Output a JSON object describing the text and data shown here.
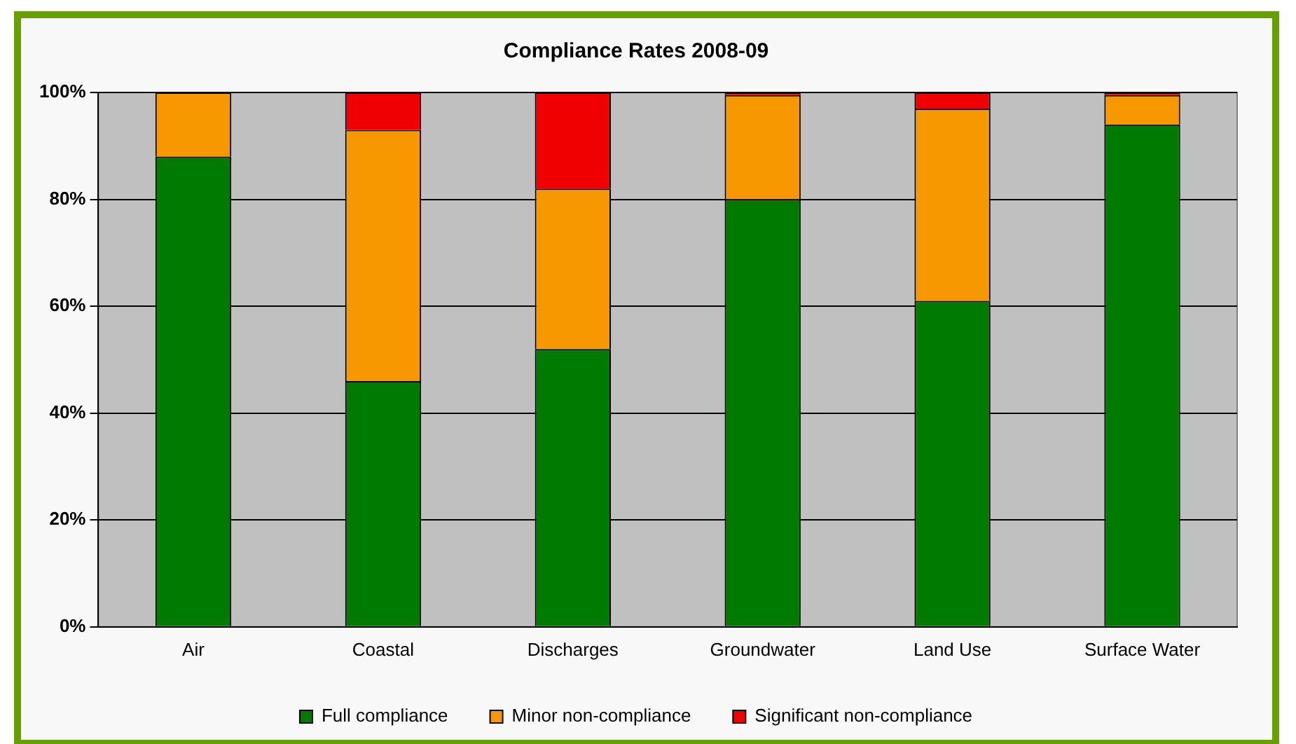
{
  "chart_data": {
    "type": "bar",
    "title": "Compliance Rates 2008-09",
    "categories": [
      "Air",
      "Coastal",
      "Discharges",
      "Groundwater",
      "Land Use",
      "Surface Water"
    ],
    "stacked": true,
    "series": [
      {
        "name": "Full compliance",
        "color": "#007a00",
        "values": [
          88,
          46,
          52,
          80,
          61,
          94
        ]
      },
      {
        "name": "Minor non-compliance",
        "color": "#f79800",
        "values": [
          12,
          47,
          30,
          19.5,
          36,
          5.5
        ]
      },
      {
        "name": "Significant non-compliance",
        "color": "#f00000",
        "values": [
          0,
          7,
          18,
          0.5,
          3,
          0.5
        ]
      }
    ],
    "ylim": [
      0,
      100
    ],
    "yticks": [
      {
        "value": 0,
        "label": "0%"
      },
      {
        "value": 20,
        "label": "20%"
      },
      {
        "value": 40,
        "label": "40%"
      },
      {
        "value": 60,
        "label": "60%"
      },
      {
        "value": 80,
        "label": "80%"
      },
      {
        "value": 100,
        "label": "100%"
      }
    ],
    "grid": "y",
    "legend": "bottom"
  }
}
